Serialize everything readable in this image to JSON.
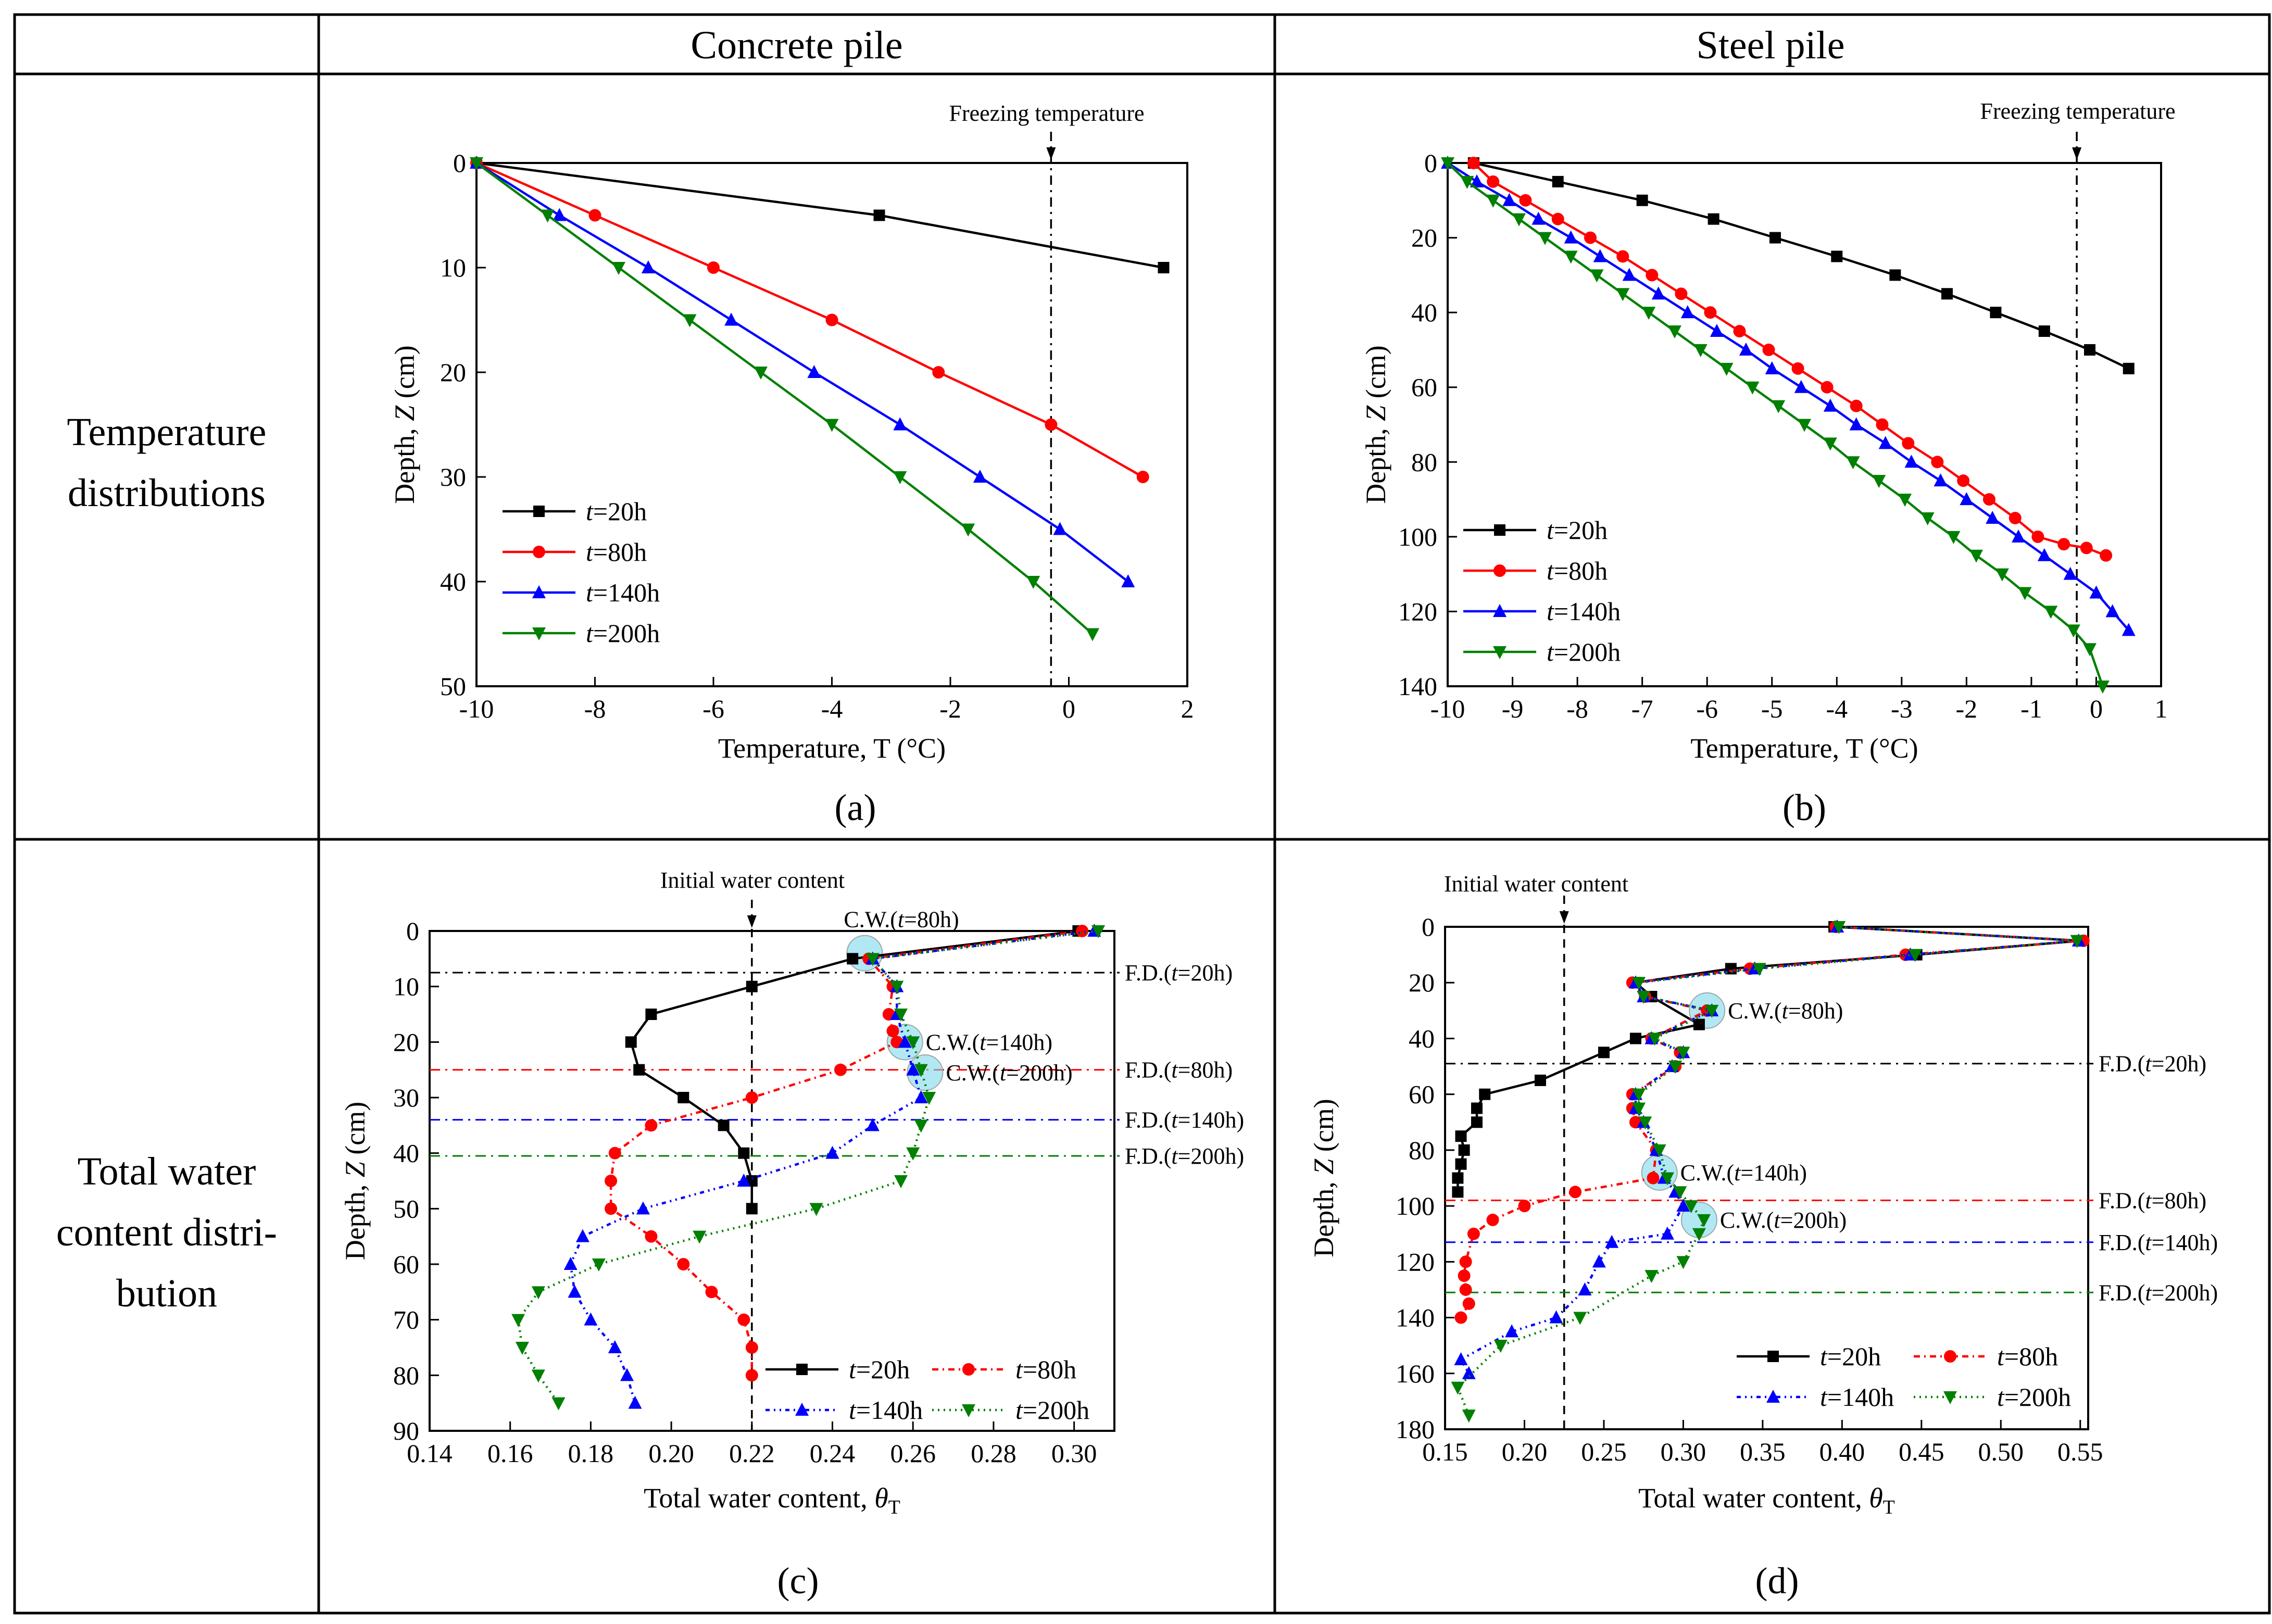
{
  "table": {
    "col_headers": [
      "Concrete pile",
      "Steel pile"
    ],
    "row_headers": [
      [
        "Temperature",
        "distributions"
      ],
      [
        "Total water",
        "content distri-",
        "bution"
      ]
    ]
  },
  "colors": {
    "t20": "#000000",
    "t80": "#ff0000",
    "t140": "#0000ff",
    "t200": "#008000",
    "highlight": "#7fd8ec"
  },
  "chart_data": [
    {
      "id": "a",
      "type": "line",
      "panel_label": "(a)",
      "xlabel": "Temperature, T (°C)",
      "ylabel": "Depth, Z (cm)",
      "xlim": [
        -10,
        2
      ],
      "ylim": [
        0,
        50
      ],
      "y_inverted": true,
      "xticks": [
        -10,
        -8,
        -6,
        -4,
        -2,
        0,
        2
      ],
      "yticks": [
        0,
        10,
        20,
        30,
        40,
        50
      ],
      "xtick_decimals": 0,
      "legend_placement": "lower-left",
      "refline": {
        "orientation": "vertical",
        "value": -0.3,
        "label": "Freezing temperature",
        "style": "dashdot"
      },
      "series": [
        {
          "name": "t=20h",
          "color": "#000000",
          "marker": "square",
          "dash": "",
          "x": [
            -10,
            -3.2,
            1.6
          ],
          "y": [
            0,
            5,
            10
          ]
        },
        {
          "name": "t=80h",
          "color": "#ff0000",
          "marker": "circle",
          "dash": "",
          "x": [
            -10,
            -8.0,
            -6.0,
            -4.0,
            -2.2,
            -0.3,
            1.25
          ],
          "y": [
            0,
            5,
            10,
            15,
            20,
            25,
            30
          ]
        },
        {
          "name": "t=140h",
          "color": "#0000ff",
          "marker": "triangle",
          "dash": "",
          "x": [
            -10,
            -8.6,
            -7.1,
            -5.7,
            -4.3,
            -2.85,
            -1.5,
            -0.15,
            1.0
          ],
          "y": [
            0,
            5,
            10,
            15,
            20,
            25,
            30,
            35,
            40
          ]
        },
        {
          "name": "t=200h",
          "color": "#008000",
          "marker": "tri-down",
          "dash": "",
          "x": [
            -10,
            -8.8,
            -7.6,
            -6.4,
            -5.2,
            -4.0,
            -2.85,
            -1.7,
            -0.6,
            0.4
          ],
          "y": [
            0,
            5,
            10,
            15,
            20,
            25,
            30,
            35,
            40,
            45
          ]
        }
      ]
    },
    {
      "id": "b",
      "type": "line",
      "panel_label": "(b)",
      "xlabel": "Temperature, T (°C)",
      "ylabel": "Depth, Z (cm)",
      "xlim": [
        -10,
        1
      ],
      "ylim": [
        0,
        140
      ],
      "y_inverted": true,
      "xticks": [
        -10,
        -9,
        -8,
        -7,
        -6,
        -5,
        -4,
        -3,
        -2,
        -1,
        0,
        1
      ],
      "yticks": [
        0,
        20,
        40,
        60,
        80,
        100,
        120,
        140
      ],
      "xtick_decimals": 0,
      "legend_placement": "lower-left",
      "refline": {
        "orientation": "vertical",
        "value": -0.3,
        "label": "Freezing  temperature",
        "style": "dashdot"
      },
      "series": [
        {
          "name": "t=20h",
          "color": "#000000",
          "marker": "square",
          "dash": "",
          "x": [
            -9.6,
            -8.3,
            -7.0,
            -5.9,
            -4.95,
            -4.0,
            -3.1,
            -2.3,
            -1.55,
            -0.8,
            -0.1,
            0.5
          ],
          "y": [
            0,
            5,
            10,
            15,
            20,
            25,
            30,
            35,
            40,
            45,
            50,
            55
          ]
        },
        {
          "name": "t=80h",
          "color": "#ff0000",
          "marker": "circle",
          "dash": "",
          "x": [
            -9.6,
            -9.3,
            -8.8,
            -8.3,
            -7.8,
            -7.3,
            -6.85,
            -6.4,
            -5.95,
            -5.5,
            -5.05,
            -4.6,
            -4.15,
            -3.7,
            -3.3,
            -2.9,
            -2.45,
            -2.05,
            -1.65,
            -1.25,
            -0.9,
            -0.5,
            -0.15,
            0.15
          ],
          "y": [
            0,
            5,
            10,
            15,
            20,
            25,
            30,
            35,
            40,
            45,
            50,
            55,
            60,
            65,
            70,
            75,
            80,
            85,
            90,
            95,
            100,
            102,
            103,
            105
          ]
        },
        {
          "name": "t=140h",
          "color": "#0000ff",
          "marker": "triangle",
          "dash": "",
          "x": [
            -10,
            -9.55,
            -9.05,
            -8.6,
            -8.1,
            -7.65,
            -7.2,
            -6.75,
            -6.3,
            -5.85,
            -5.4,
            -5.0,
            -4.55,
            -4.1,
            -3.7,
            -3.25,
            -2.85,
            -2.4,
            -2.0,
            -1.6,
            -1.2,
            -0.8,
            -0.4,
            0.0,
            0.25,
            0.5
          ],
          "y": [
            0,
            5,
            10,
            15,
            20,
            25,
            30,
            35,
            40,
            45,
            50,
            55,
            60,
            65,
            70,
            75,
            80,
            85,
            90,
            95,
            100,
            105,
            110,
            115,
            120,
            125
          ]
        },
        {
          "name": "t=200h",
          "color": "#008000",
          "marker": "tri-down",
          "dash": "",
          "x": [
            -10,
            -9.7,
            -9.3,
            -8.9,
            -8.5,
            -8.1,
            -7.7,
            -7.3,
            -6.9,
            -6.5,
            -6.1,
            -5.7,
            -5.3,
            -4.9,
            -4.5,
            -4.1,
            -3.75,
            -3.35,
            -2.95,
            -2.6,
            -2.2,
            -1.85,
            -1.45,
            -1.1,
            -0.7,
            -0.35,
            -0.1,
            0.1
          ],
          "y": [
            0,
            5,
            10,
            15,
            20,
            25,
            30,
            35,
            40,
            45,
            50,
            55,
            60,
            65,
            70,
            75,
            80,
            85,
            90,
            95,
            100,
            105,
            110,
            115,
            120,
            125,
            130,
            140
          ]
        }
      ]
    },
    {
      "id": "c",
      "type": "line",
      "panel_label": "(c)",
      "xlabel": "Total water content,  θT",
      "ylabel": "Depth, Z (cm)",
      "xlim": [
        0.14,
        0.31
      ],
      "ylim": [
        0,
        90
      ],
      "y_inverted": true,
      "xticks": [
        0.14,
        0.16,
        0.18,
        0.2,
        0.22,
        0.24,
        0.26,
        0.28,
        0.3
      ],
      "yticks": [
        0,
        10,
        20,
        30,
        40,
        50,
        60,
        70,
        80,
        90
      ],
      "xtick_decimals": 2,
      "legend_placement": "lower-right",
      "refline": {
        "orientation": "vertical",
        "value": 0.22,
        "label": "Initial water content",
        "style": "dashed"
      },
      "frost_depths": [
        {
          "label": "F.D.(t=20h)",
          "depth": 7.5,
          "color": "#000000"
        },
        {
          "label": "F.D.(t=80h)",
          "depth": 25,
          "color": "#ff0000"
        },
        {
          "label": "F.D.(t=140h)",
          "depth": 34,
          "color": "#0000ff"
        },
        {
          "label": "F.D.(t=200h)",
          "depth": 40.5,
          "color": "#008000"
        }
      ],
      "cold_water_points": [
        {
          "label": "C.W.(t=80h)",
          "x": 0.248,
          "y": 4
        },
        {
          "label": "C.W.(t=140h)",
          "x": 0.258,
          "y": 20
        },
        {
          "label": "C.W.(t=200h)",
          "x": 0.263,
          "y": 25.5
        }
      ],
      "series": [
        {
          "name": "t=20h",
          "color": "#000000",
          "marker": "square",
          "dash": "",
          "x": [
            0.301,
            0.245,
            0.22,
            0.195,
            0.19,
            0.192,
            0.203,
            0.213,
            0.218,
            0.22,
            0.22
          ],
          "y": [
            0,
            5,
            10,
            15,
            20,
            25,
            30,
            35,
            40,
            45,
            50
          ]
        },
        {
          "name": "t=80h",
          "color": "#ff0000",
          "marker": "circle",
          "dash": "12,8,3,8",
          "x": [
            0.302,
            0.249,
            0.255,
            0.254,
            0.255,
            0.256,
            0.242,
            0.22,
            0.195,
            0.186,
            0.185,
            0.185,
            0.195,
            0.203,
            0.21,
            0.218,
            0.22,
            0.22
          ],
          "y": [
            0,
            5,
            10,
            15,
            18,
            20,
            25,
            30,
            35,
            40,
            45,
            50,
            55,
            60,
            65,
            70,
            75,
            80
          ]
        },
        {
          "name": "t=140h",
          "color": "#0000ff",
          "marker": "triangle",
          "dash": "8,8,3,8,3,8",
          "x": [
            0.305,
            0.25,
            0.256,
            0.256,
            0.258,
            0.26,
            0.262,
            0.25,
            0.24,
            0.218,
            0.193,
            0.178,
            0.175,
            0.176,
            0.18,
            0.186,
            0.189,
            0.191
          ],
          "y": [
            0,
            5,
            10,
            15,
            20,
            25,
            30,
            35,
            40,
            45,
            50,
            55,
            60,
            65,
            70,
            75,
            80,
            85
          ]
        },
        {
          "name": "t=200h",
          "color": "#008000",
          "marker": "tri-down",
          "dash": "3,8",
          "x": [
            0.306,
            0.25,
            0.256,
            0.257,
            0.26,
            0.262,
            0.264,
            0.262,
            0.26,
            0.257,
            0.236,
            0.207,
            0.182,
            0.167,
            0.162,
            0.163,
            0.167,
            0.172
          ],
          "y": [
            0,
            5,
            10,
            15,
            20,
            25,
            30,
            35,
            40,
            45,
            50,
            55,
            60,
            65,
            70,
            75,
            80,
            85
          ]
        }
      ]
    },
    {
      "id": "d",
      "type": "line",
      "panel_label": "(d)",
      "xlabel": "Total water content, θT",
      "ylabel": "Depth, Z (cm)",
      "xlim": [
        0.15,
        0.555
      ],
      "ylim": [
        0,
        180
      ],
      "y_inverted": true,
      "xticks": [
        0.15,
        0.2,
        0.25,
        0.3,
        0.35,
        0.4,
        0.45,
        0.5,
        0.55
      ],
      "yticks": [
        0,
        20,
        40,
        60,
        80,
        100,
        120,
        140,
        160,
        180
      ],
      "xtick_decimals": 2,
      "legend_placement": "lower-right",
      "refline": {
        "orientation": "vertical",
        "value": 0.225,
        "label": "Initial water content",
        "style": "dashed"
      },
      "frost_depths": [
        {
          "label": "F.D.(t=20h)",
          "depth": 49,
          "color": "#000000"
        },
        {
          "label": "F.D.(t=80h)",
          "depth": 98,
          "color": "#ff0000"
        },
        {
          "label": "F.D.(t=140h)",
          "depth": 113,
          "color": "#0000ff"
        },
        {
          "label": "F.D.(t=200h)",
          "depth": 131,
          "color": "#008000"
        }
      ],
      "cold_water_points": [
        {
          "label": "C.W.(t=80h)",
          "x": 0.315,
          "y": 30
        },
        {
          "label": "C.W.(t=140h)",
          "x": 0.285,
          "y": 88
        },
        {
          "label": "C.W.(t=200h)",
          "x": 0.31,
          "y": 105
        }
      ],
      "series": [
        {
          "name": "t=20h",
          "color": "#000000",
          "marker": "square",
          "dash": "",
          "x": [
            0.395,
            0.55,
            0.447,
            0.33,
            0.27,
            0.28,
            0.31,
            0.27,
            0.25,
            0.21,
            0.175,
            0.17,
            0.17,
            0.16,
            0.162,
            0.16,
            0.158,
            0.158
          ],
          "y": [
            0,
            5,
            10,
            15,
            20,
            25,
            35,
            40,
            45,
            55,
            60,
            65,
            70,
            75,
            80,
            85,
            90,
            95
          ]
        },
        {
          "name": "t=80h",
          "color": "#ff0000",
          "marker": "circle",
          "dash": "12,8,3,8",
          "x": [
            0.396,
            0.552,
            0.44,
            0.342,
            0.268,
            0.276,
            0.315,
            0.28,
            0.298,
            0.295,
            0.268,
            0.268,
            0.27,
            0.283,
            0.281,
            0.232,
            0.2,
            0.18,
            0.168,
            0.163,
            0.162,
            0.163,
            0.165,
            0.16
          ],
          "y": [
            0,
            5,
            10,
            15,
            20,
            25,
            30,
            40,
            45,
            50,
            60,
            65,
            70,
            80,
            90,
            95,
            100,
            105,
            110,
            120,
            125,
            130,
            135,
            140
          ]
        },
        {
          "name": "t=140h",
          "color": "#0000ff",
          "marker": "triangle",
          "dash": "8,8,3,8,3,8",
          "x": [
            0.397,
            0.549,
            0.443,
            0.345,
            0.27,
            0.275,
            0.318,
            0.28,
            0.3,
            0.293,
            0.27,
            0.27,
            0.275,
            0.283,
            0.288,
            0.295,
            0.3,
            0.29,
            0.255,
            0.247,
            0.238,
            0.22,
            0.192,
            0.16,
            0.165
          ],
          "y": [
            0,
            5,
            10,
            15,
            20,
            25,
            30,
            40,
            45,
            50,
            60,
            65,
            70,
            80,
            90,
            95,
            100,
            110,
            113,
            120,
            130,
            140,
            145,
            155,
            160
          ]
        },
        {
          "name": "t=200h",
          "color": "#008000",
          "marker": "tri-down",
          "dash": "3,8",
          "x": [
            0.398,
            0.548,
            0.446,
            0.348,
            0.272,
            0.275,
            0.318,
            0.282,
            0.3,
            0.295,
            0.272,
            0.272,
            0.276,
            0.285,
            0.29,
            0.298,
            0.305,
            0.313,
            0.31,
            0.3,
            0.28,
            0.235,
            0.185,
            0.158,
            0.165
          ],
          "y": [
            0,
            5,
            10,
            15,
            20,
            25,
            30,
            40,
            45,
            50,
            60,
            65,
            70,
            80,
            90,
            95,
            100,
            105,
            110,
            120,
            125,
            140,
            150,
            165,
            175
          ]
        }
      ]
    }
  ]
}
